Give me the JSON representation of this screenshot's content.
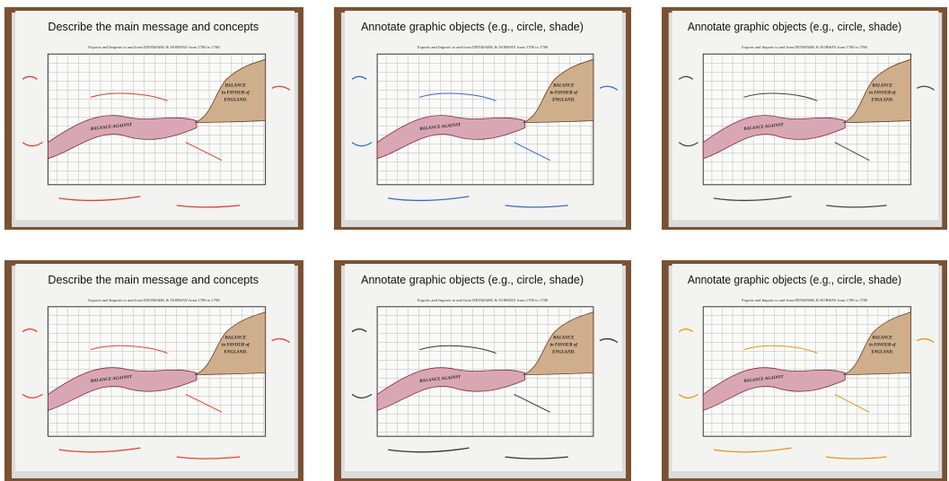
{
  "panels": [
    {
      "heading": "Describe the main message and concepts",
      "chart_title": "Exports and Imports to and from DENMARK & NORWAY from 1700 to 1780",
      "balance_against": "BALANCE AGAINST",
      "balance_favour": [
        "BALANCE",
        "in FAVOUR of",
        "ENGLAND."
      ]
    },
    {
      "heading": "Annotate graphic objects (e.g., circle, shade)",
      "chart_title": "Exports and Imports to and from DENMARK & NORWAY from 1700 to 1780",
      "balance_against": "BALANCE AGAINST",
      "balance_favour": [
        "BALANCE",
        "in FAVOUR of",
        "ENGLAND."
      ]
    },
    {
      "heading": "Annotate graphic objects (e.g., circle, shade)",
      "chart_title": "Exports and Imports to and from DENMARK & NORWAY from 1700 to 1780",
      "balance_against": "BALANCE AGAINST",
      "balance_favour": [
        "BALANCE",
        "in FAVOUR of",
        "ENGLAND."
      ]
    },
    {
      "heading": "Describe the main message and concepts",
      "chart_title": "Exports and Imports to and from DENMARK & NORWAY from 1700 to 1780",
      "balance_against": "BALANCE AGAINST",
      "balance_favour": [
        "BALANCE",
        "in FAVOUR of",
        "ENGLAND."
      ]
    },
    {
      "heading": "Annotate graphic objects (e.g., circle, shade)",
      "chart_title": "Exports and Imports to and from DENMARK & NORWAY from 1700 to 1780",
      "balance_against": "BALANCE AGAINST",
      "balance_favour": [
        "BALANCE",
        "in FAVOUR of",
        "ENGLAND."
      ]
    },
    {
      "heading": "Annotate graphic objects (e.g., circle, shade)",
      "chart_title": "Exports and Imports to and from DENMARK & NORWAY from 1700 to 1780",
      "balance_against": "BALANCE AGAINST",
      "balance_favour": [
        "BALANCE",
        "in FAVOUR of",
        "ENGLAND."
      ]
    }
  ]
}
